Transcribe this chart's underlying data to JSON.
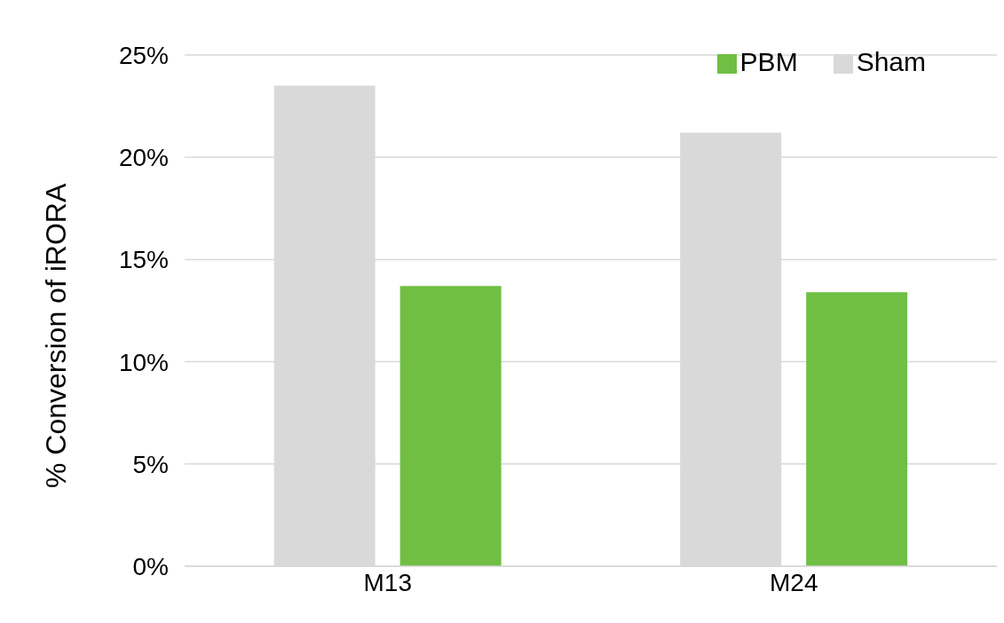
{
  "chart_data": {
    "type": "bar",
    "ylabel": "% Conversion of iRORA",
    "categories": [
      "M13",
      "M24"
    ],
    "series": [
      {
        "name": "Sham",
        "color": "#d9d9d9",
        "values": [
          23.5,
          21.2
        ]
      },
      {
        "name": "PBM",
        "color": "#70bf44",
        "values": [
          13.7,
          13.4
        ]
      }
    ],
    "ylim": [
      0,
      25
    ],
    "yticks": [
      {
        "value": 0,
        "label": "0%"
      },
      {
        "value": 5,
        "label": "5%"
      },
      {
        "value": 10,
        "label": "10%"
      },
      {
        "value": 15,
        "label": "15%"
      },
      {
        "value": 20,
        "label": "20%"
      },
      {
        "value": 25,
        "label": "25%"
      }
    ],
    "grid": "y",
    "legend": "top right"
  }
}
